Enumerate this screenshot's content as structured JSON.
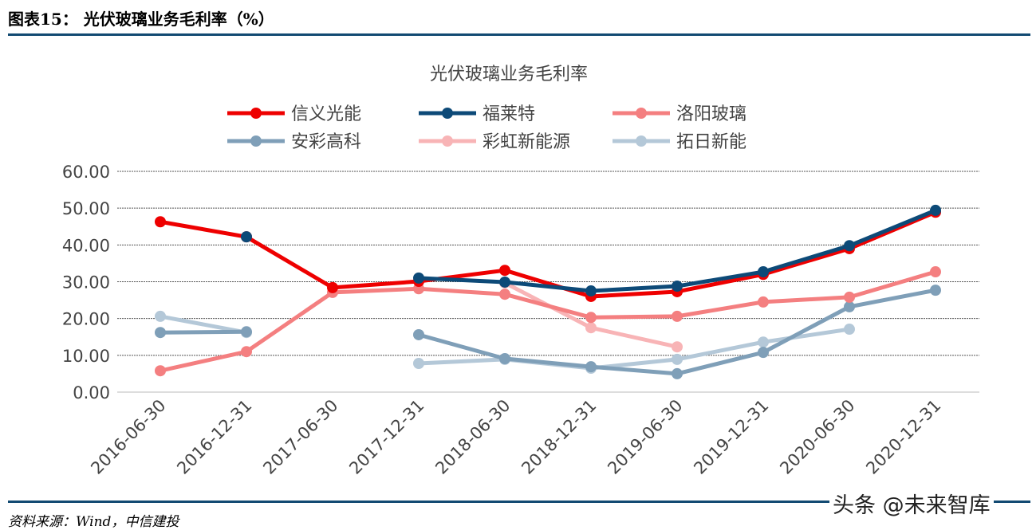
{
  "figure_title": "图表15： 光伏玻璃业务毛利率（%）",
  "source": "资料来源：Wind，中信建投",
  "watermark": "头条 @未来智库",
  "chart_data": {
    "type": "line",
    "title": "光伏玻璃业务毛利率",
    "categories": [
      "2016-06-30",
      "2016-12-31",
      "2017-06-30",
      "2017-12-31",
      "2018-06-30",
      "2018-12-31",
      "2019-06-30",
      "2019-12-31",
      "2020-06-30",
      "2020-12-31"
    ],
    "ylim": [
      0,
      60
    ],
    "yticks": [
      "0.00",
      "10.00",
      "20.00",
      "30.00",
      "40.00",
      "50.00",
      "60.00"
    ],
    "grid": true,
    "legend_position": "top",
    "series": [
      {
        "name": "信义光能",
        "color": "#ee0000",
        "values": [
          46.3,
          42.2,
          28.4,
          30.1,
          33.1,
          26.0,
          27.3,
          32.0,
          39.0,
          48.9
        ]
      },
      {
        "name": "福莱特",
        "color": "#0d4a78",
        "values": [
          null,
          42.2,
          null,
          31.0,
          29.9,
          27.5,
          28.8,
          32.7,
          39.8,
          49.4
        ]
      },
      {
        "name": "洛阳玻璃",
        "color": "#f47f80",
        "values": [
          5.8,
          11.0,
          27.1,
          28.1,
          26.6,
          20.3,
          20.6,
          24.5,
          25.8,
          32.7
        ]
      },
      {
        "name": "安彩高科",
        "color": "#7f9fb8",
        "values": [
          16.2,
          16.4,
          null,
          15.6,
          9.1,
          6.9,
          5.0,
          10.8,
          23.2,
          27.7
        ]
      },
      {
        "name": "彩虹新能源",
        "color": "#f8b4b6",
        "values": [
          null,
          null,
          null,
          null,
          29.7,
          17.5,
          12.3,
          null,
          null,
          null
        ]
      },
      {
        "name": "拓日新能",
        "color": "#b4c8d8",
        "values": [
          20.6,
          16.2,
          null,
          7.8,
          8.9,
          6.5,
          8.9,
          13.6,
          17.1,
          null
        ]
      }
    ]
  }
}
